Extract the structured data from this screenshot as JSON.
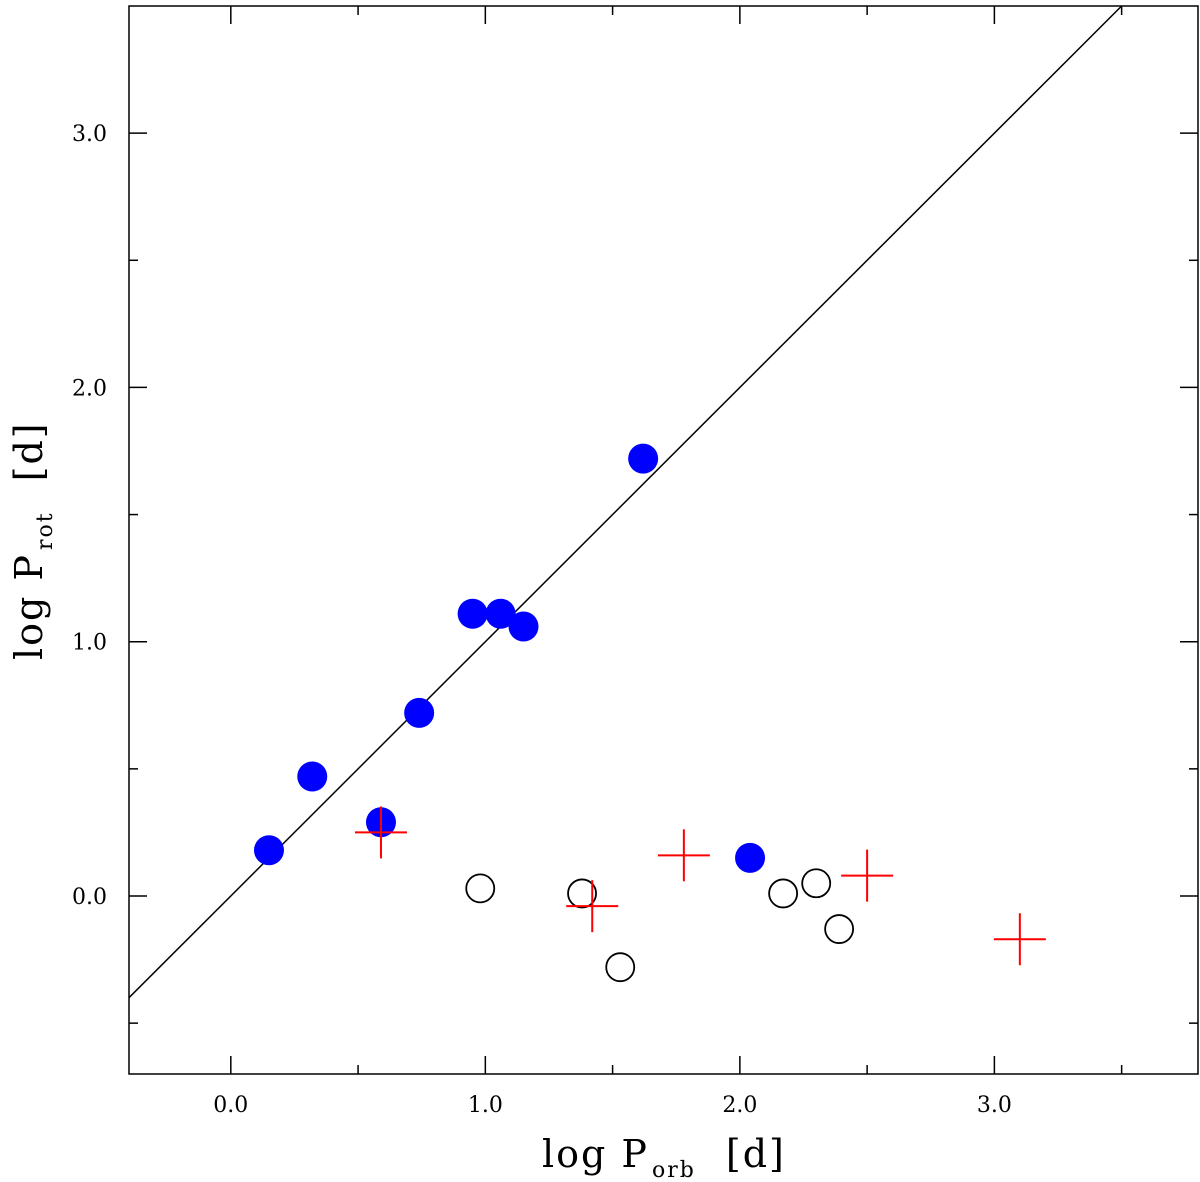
{
  "chart_data": {
    "type": "scatter",
    "xlabel": {
      "main": "log  P",
      "sub": "orb",
      "unit": "[d]"
    },
    "ylabel": {
      "main": "log  P",
      "sub": "rot",
      "unit": "[d]"
    },
    "xlim": [
      -0.4,
      3.8
    ],
    "ylim": [
      -0.7,
      3.5
    ],
    "x_ticks": [
      {
        "value": 0.0,
        "label": "0.0"
      },
      {
        "value": 1.0,
        "label": "1.0"
      },
      {
        "value": 2.0,
        "label": "2.0"
      },
      {
        "value": 3.0,
        "label": "3.0"
      }
    ],
    "x_minor_ticks": [
      0.5,
      1.5,
      2.5,
      3.5
    ],
    "y_ticks": [
      {
        "value": 0.0,
        "label": "0.0"
      },
      {
        "value": 1.0,
        "label": "1.0"
      },
      {
        "value": 2.0,
        "label": "2.0"
      },
      {
        "value": 3.0,
        "label": "3.0"
      }
    ],
    "y_minor_ticks": [
      -0.5,
      0.5,
      1.5,
      2.5
    ],
    "line": {
      "slope": 1,
      "intercept": 0,
      "color": "#000000"
    },
    "series": [
      {
        "marker": "filled-circle",
        "color": "#0000ff",
        "points": [
          [
            0.15,
            0.18
          ],
          [
            0.32,
            0.47
          ],
          [
            0.59,
            0.29
          ],
          [
            0.74,
            0.72
          ],
          [
            0.95,
            1.11
          ],
          [
            1.06,
            1.11
          ],
          [
            1.15,
            1.06
          ],
          [
            1.62,
            1.72
          ],
          [
            2.04,
            0.15
          ]
        ]
      },
      {
        "marker": "open-circle",
        "color": "#000000",
        "points": [
          [
            0.98,
            0.03
          ],
          [
            1.38,
            0.01
          ],
          [
            1.53,
            -0.28
          ],
          [
            2.17,
            0.01
          ],
          [
            2.3,
            0.05
          ],
          [
            2.39,
            -0.13
          ]
        ]
      },
      {
        "marker": "plus",
        "color": "#ff0000",
        "points": [
          [
            0.59,
            0.25
          ],
          [
            1.42,
            -0.04
          ],
          [
            1.78,
            0.16
          ],
          [
            2.5,
            0.08
          ],
          [
            3.1,
            -0.17
          ]
        ]
      }
    ]
  }
}
